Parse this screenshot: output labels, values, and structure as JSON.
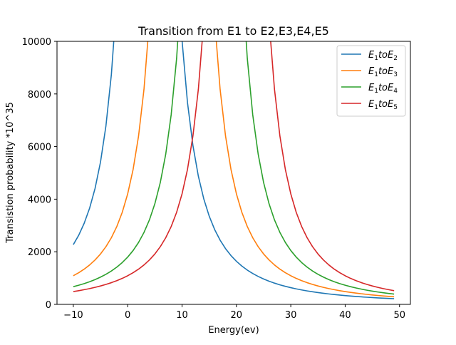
{
  "chart_data": {
    "type": "line",
    "title": "Transition from E1 to E2,E3,E4,E5",
    "xlabel": "Energy(ev)",
    "ylabel": "Transistion probability *10^35",
    "xlim": [
      -13,
      52
    ],
    "ylim": [
      0,
      10000
    ],
    "xticks": [
      -10,
      0,
      10,
      20,
      30,
      40,
      50
    ],
    "yticks": [
      0,
      2000,
      4000,
      6000,
      8000,
      10000
    ],
    "grid": false,
    "legend_position": "top-right",
    "series": [
      {
        "name": "E1toE2",
        "legend_main": "E",
        "legend_sub1": "1",
        "legend_mid": "toE",
        "legend_sub2": "2",
        "color": "#1f77b4",
        "center": 3.75,
        "amplitude": 91000,
        "width": 2.2
      },
      {
        "name": "E1toE3",
        "legend_main": "E",
        "legend_sub1": "1",
        "legend_mid": "toE",
        "legend_sub2": "3",
        "color": "#ff7f0e",
        "center": 10.0,
        "amplitude": 91000,
        "width": 2.2
      },
      {
        "name": "E1toE4",
        "legend_main": "E",
        "legend_sub1": "1",
        "legend_mid": "toE",
        "legend_sub2": "4",
        "color": "#2ca02c",
        "center": 15.5,
        "amplitude": 91000,
        "width": 2.2
      },
      {
        "name": "E1toE5",
        "legend_main": "E",
        "legend_sub1": "1",
        "legend_mid": "toE",
        "legend_sub2": "5",
        "color": "#d62728",
        "center": 20.0,
        "amplitude": 91000,
        "width": 2.2
      }
    ],
    "x_values": [
      -10,
      -9,
      -8,
      -7,
      -6,
      -5,
      -4,
      -3,
      -2,
      -1,
      0,
      1,
      2,
      3,
      4,
      5,
      6,
      7,
      8,
      9,
      10,
      11,
      12,
      13,
      14,
      15,
      16,
      17,
      18,
      19,
      20,
      21,
      22,
      23,
      24,
      25,
      26,
      27,
      28,
      29,
      30,
      31,
      32,
      33,
      34,
      35,
      36,
      37,
      38,
      39,
      40,
      41,
      42,
      43,
      44,
      45,
      46,
      47,
      48,
      49
    ]
  }
}
